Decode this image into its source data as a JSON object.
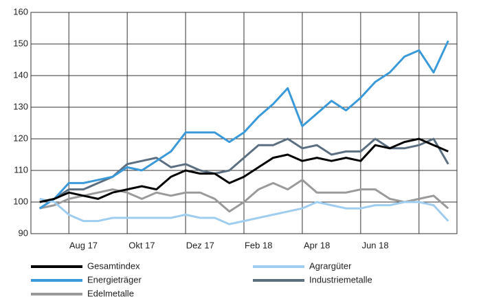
{
  "chart_data": {
    "type": "line",
    "x": [
      -1,
      -0.5,
      0,
      0.5,
      1,
      1.5,
      2,
      2.5,
      3,
      3.5,
      4,
      4.5,
      5,
      5.5,
      6,
      6.5,
      7,
      7.5,
      8,
      8.5,
      9,
      9.5,
      10,
      10.5,
      11,
      11.5,
      12,
      12.5,
      13
    ],
    "xlim": [
      -1.3,
      13.3
    ],
    "xticks": [
      {
        "value": 0.5,
        "label": "Aug 17"
      },
      {
        "value": 2.5,
        "label": "Okt 17"
      },
      {
        "value": 4.5,
        "label": "Dez 17"
      },
      {
        "value": 6.5,
        "label": "Feb 18"
      },
      {
        "value": 8.5,
        "label": "Apr 18"
      },
      {
        "value": 10.5,
        "label": "Jun 18"
      }
    ],
    "xgrid": [
      0,
      2,
      4,
      6,
      8,
      10,
      12
    ],
    "ylim": [
      90,
      160
    ],
    "yticks": [
      90,
      100,
      110,
      120,
      130,
      140,
      150,
      160
    ],
    "grid": true,
    "legend": "bottom",
    "series": [
      {
        "name": "Gesamtindex",
        "color": "#000000",
        "values": [
          100,
          101,
          103,
          102,
          101,
          103,
          104,
          105,
          104,
          108,
          110,
          109,
          109,
          106,
          108,
          111,
          114,
          115,
          113,
          114,
          113,
          114,
          113,
          118,
          117,
          119,
          120,
          118,
          116
        ]
      },
      {
        "name": "Agrargüter",
        "color": "#9fcdef",
        "values": [
          101,
          100,
          96,
          94,
          94,
          95,
          95,
          95,
          95,
          95,
          96,
          95,
          95,
          93,
          94,
          95,
          96,
          97,
          98,
          100,
          99,
          98,
          98,
          99,
          99,
          100,
          100,
          99,
          94
        ]
      },
      {
        "name": "Energieträger",
        "color": "#3a9ad9",
        "values": [
          98,
          101,
          106,
          106,
          107,
          108,
          111,
          110,
          113,
          116,
          122,
          122,
          122,
          119,
          122,
          127,
          131,
          136,
          124,
          128,
          132,
          129,
          133,
          138,
          141,
          146,
          148,
          141,
          151
        ]
      },
      {
        "name": "Industriemetalle",
        "color": "#5b6f80",
        "values": [
          98,
          101,
          104,
          104,
          106,
          108,
          112,
          113,
          114,
          111,
          112,
          110,
          109,
          110,
          114,
          118,
          118,
          120,
          117,
          118,
          115,
          116,
          116,
          120,
          117,
          117,
          118,
          120,
          112
        ]
      },
      {
        "name": "Edelmetalle",
        "color": "#9a9a9a",
        "values": [
          98,
          99,
          101,
          102,
          103,
          104,
          103,
          101,
          103,
          102,
          103,
          103,
          101,
          97,
          100,
          104,
          106,
          104,
          107,
          103,
          103,
          103,
          104,
          104,
          101,
          100,
          101,
          102,
          98
        ]
      }
    ]
  }
}
